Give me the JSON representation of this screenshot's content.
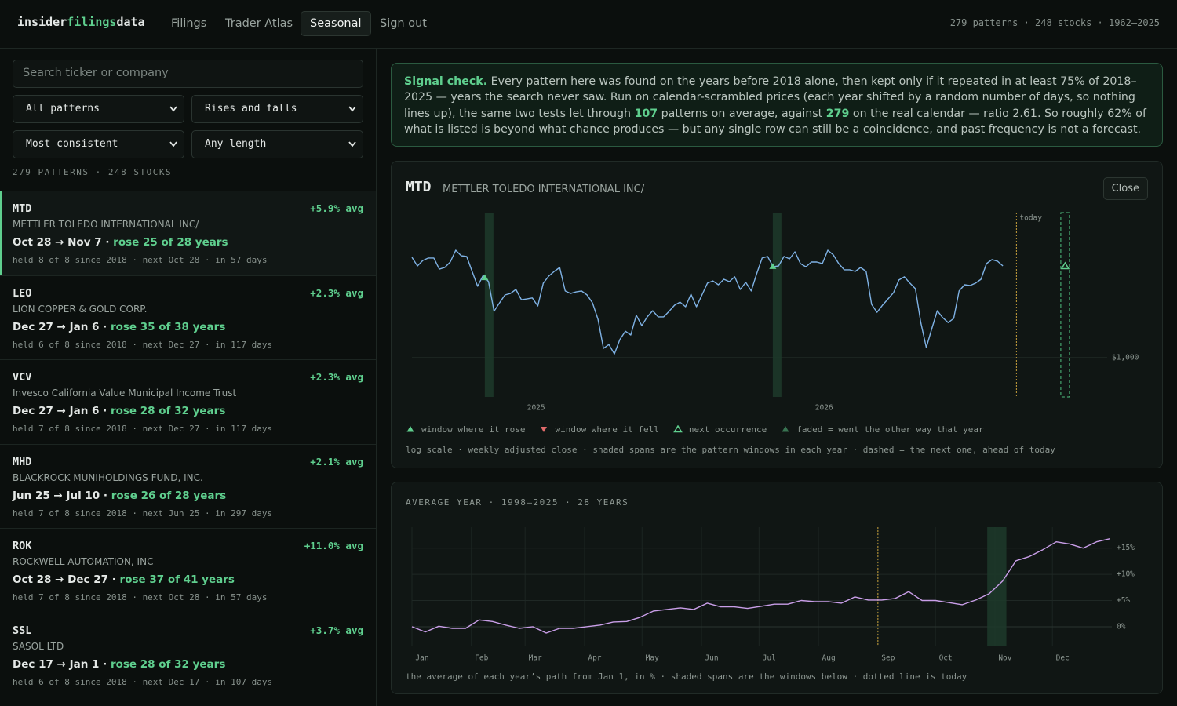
{
  "header": {
    "brand": [
      "insider",
      "filings",
      "data"
    ],
    "nav": [
      "Filings",
      "Trader Atlas",
      "Seasonal",
      "Sign out"
    ],
    "active_nav": 2,
    "stats": "279 patterns · 248 stocks · 1962–2025"
  },
  "sidebar": {
    "search_placeholder": "Search ticker or company",
    "filters": [
      "All patterns",
      "Rises and falls",
      "Most consistent",
      "Any length"
    ],
    "count": "279 PATTERNS · 248 STOCKS",
    "separator": "·",
    "active_item": 0,
    "items": [
      {
        "ticker": "MTD",
        "name": "METTLER TOLEDO INTERNATIONAL INC/",
        "avg": "+5.9% avg",
        "window": "Oct 28 → Nov 7",
        "stat": "rose 25 of 28 years",
        "detail": "held 8 of 8 since 2018 · next Oct 28 · in 57 days"
      },
      {
        "ticker": "LEO",
        "name": "LION COPPER & GOLD CORP.",
        "avg": "+2.3% avg",
        "window": "Dec 27 → Jan 6",
        "stat": "rose 35 of 38 years",
        "detail": "held 6 of 8 since 2018 · next Dec 27 · in 117 days"
      },
      {
        "ticker": "VCV",
        "name": "Invesco California Value Municipal Income Trust",
        "avg": "+2.3% avg",
        "window": "Dec 27 → Jan 6",
        "stat": "rose 28 of 32 years",
        "detail": "held 7 of 8 since 2018 · next Dec 27 · in 117 days"
      },
      {
        "ticker": "MHD",
        "name": "BLACKROCK MUNIHOLDINGS FUND, INC.",
        "avg": "+2.1% avg",
        "window": "Jun 25 → Jul 10",
        "stat": "rose 26 of 28 years",
        "detail": "held 7 of 8 since 2018 · next Jun 25 · in 297 days"
      },
      {
        "ticker": "ROK",
        "name": "ROCKWELL AUTOMATION, INC",
        "avg": "+11.0% avg",
        "window": "Oct 28 → Dec 27",
        "stat": "rose 37 of 41 years",
        "detail": "held 7 of 8 since 2018 · next Oct 28 · in 57 days"
      },
      {
        "ticker": "SSL",
        "name": "SASOL LTD",
        "avg": "+3.7% avg",
        "window": "Dec 17 → Jan 1",
        "stat": "rose 28 of 32 years",
        "detail": "held 6 of 8 since 2018 · next Dec 17 · in 107 days"
      }
    ]
  },
  "signal": {
    "lead": "Signal check.",
    "parts": [
      "Every pattern here was found on the years before 2018 alone, then kept only if it repeated in at least 75% of 2018–2025 — years the search never saw. Run on calendar-scrambled prices (each year shifted by a random number of days, so nothing lines up), the same two tests let through ",
      "107",
      " patterns on average, against ",
      "279",
      " on the real calendar — ratio 2.61. So roughly 62% of what is listed is beyond what chance produces — but any single row can still be a coincidence, and past frequency is not a forecast."
    ]
  },
  "chart_data": [
    {
      "type": "line",
      "ticker": "MTD",
      "name": "METTLER TOLEDO INTERNATIONAL INC/",
      "close": "Close",
      "x": [
        2024.569,
        2024.588,
        2024.607,
        2024.626,
        2024.645,
        2024.664,
        2024.683,
        2024.702,
        2024.721,
        2024.74,
        2024.759,
        2024.778,
        2024.797,
        2024.816,
        2024.835,
        2024.854,
        2024.873,
        2024.892,
        2024.911,
        2024.93,
        2024.949,
        2024.968,
        2024.987,
        2025.006,
        2025.025,
        2025.044,
        2025.063,
        2025.082,
        2025.101,
        2025.12,
        2025.139,
        2025.158,
        2025.177,
        2025.196,
        2025.215,
        2025.234,
        2025.253,
        2025.272,
        2025.291,
        2025.31,
        2025.329,
        2025.348,
        2025.367,
        2025.386,
        2025.405,
        2025.424,
        2025.443,
        2025.462,
        2025.481,
        2025.5,
        2025.519,
        2025.538,
        2025.557,
        2025.576,
        2025.595,
        2025.614,
        2025.633,
        2025.652,
        2025.671,
        2025.69,
        2025.709,
        2025.728,
        2025.747,
        2025.766,
        2025.785,
        2025.804,
        2025.823,
        2025.842,
        2025.861,
        2025.88,
        2025.899,
        2025.918,
        2025.937,
        2025.956,
        2025.975,
        2025.994,
        2026.013,
        2026.032,
        2026.051,
        2026.07,
        2026.089,
        2026.108,
        2026.127,
        2026.146,
        2026.165,
        2026.184,
        2026.203,
        2026.222,
        2026.241,
        2026.26,
        2026.279,
        2026.298,
        2026.317,
        2026.336,
        2026.355,
        2026.374,
        2026.393,
        2026.412,
        2026.431,
        2026.45,
        2026.469,
        2026.488,
        2026.507,
        2026.526,
        2026.545,
        2026.564,
        2026.583,
        2026.602,
        2026.621
      ],
      "values": [
        1384,
        1346,
        1370,
        1381,
        1381,
        1332,
        1339,
        1363,
        1416,
        1391,
        1388,
        1322,
        1260,
        1305,
        1279,
        1162,
        1194,
        1225,
        1231,
        1247,
        1206,
        1209,
        1213,
        1182,
        1273,
        1302,
        1322,
        1339,
        1241,
        1231,
        1237,
        1241,
        1225,
        1194,
        1132,
        1030,
        1043,
        1012,
        1060,
        1089,
        1076,
        1147,
        1109,
        1141,
        1164,
        1141,
        1141,
        1162,
        1185,
        1197,
        1179,
        1228,
        1179,
        1225,
        1273,
        1282,
        1266,
        1289,
        1279,
        1299,
        1247,
        1276,
        1241,
        1312,
        1381,
        1388,
        1342,
        1346,
        1388,
        1377,
        1409,
        1356,
        1342,
        1363,
        1363,
        1356,
        1416,
        1395,
        1356,
        1329,
        1329,
        1322,
        1339,
        1322,
        1188,
        1158,
        1185,
        1209,
        1234,
        1286,
        1299,
        1273,
        1250,
        1120,
        1033,
        1098,
        1164,
        1138,
        1120,
        1135,
        1241,
        1266,
        1263,
        1273,
        1289,
        1356,
        1374,
        1367,
        1346
      ],
      "color": "#7fb2e5",
      "xlim": [
        2024.569,
        2026.983
      ],
      "xticks": [
        2025,
        2026
      ],
      "ylim": [
        880,
        1600
      ],
      "yticks": [
        {
          "value": 1000,
          "label": "$1,000"
        }
      ],
      "log": true,
      "grid": true,
      "windows": [
        {
          "start": 2024.822,
          "end": 2024.852,
          "outcome": "rose"
        },
        {
          "start": 2025.822,
          "end": 2025.852,
          "outcome": "rose"
        }
      ],
      "next_window": {
        "start": 2026.822,
        "end": 2026.852
      },
      "today": 2026.668,
      "today_label": "today",
      "legend": [
        {
          "name": "window where it rose",
          "symbol": "rose"
        },
        {
          "name": "window where it fell",
          "symbol": "fell"
        },
        {
          "name": "next occurrence",
          "symbol": "next"
        },
        {
          "name": "faded = went the other way that year",
          "symbol": "faded"
        }
      ],
      "note": "log scale · weekly adjusted close · shaded spans are the pattern windows in each year · dashed = the next one, ahead of today"
    },
    {
      "type": "line",
      "title": "AVERAGE YEAR · 1998–2025 · 28 YEARS",
      "x": [
        1,
        8,
        15,
        22,
        29,
        36,
        43,
        50,
        57,
        64,
        71,
        78,
        85,
        92,
        99,
        106,
        113,
        120,
        127,
        134,
        141,
        148,
        155,
        162,
        169,
        176,
        183,
        190,
        197,
        204,
        211,
        218,
        225,
        232,
        239,
        246,
        253,
        260,
        267,
        274,
        281,
        288,
        295,
        302,
        309,
        316,
        323,
        330,
        337,
        344,
        351,
        358,
        365
      ],
      "values": [
        0,
        -1.0,
        0.1,
        -0.3,
        -0.3,
        1.3,
        1.0,
        0.3,
        -0.3,
        0,
        -1.2,
        -0.3,
        -0.3,
        0,
        0.3,
        0.9,
        1.0,
        1.8,
        3.0,
        3.3,
        3.6,
        3.3,
        4.5,
        3.8,
        3.8,
        3.5,
        3.9,
        4.3,
        4.3,
        5.0,
        4.8,
        4.8,
        4.5,
        5.7,
        5.1,
        5.1,
        5.4,
        6.7,
        5.0,
        5.0,
        4.6,
        4.2,
        5.1,
        6.3,
        8.7,
        12.6,
        13.4,
        14.7,
        16.2,
        15.8,
        15.0,
        16.2,
        16.8
      ],
      "color": "#c99ee8",
      "xlim": [
        1,
        366
      ],
      "xticks": [
        {
          "value": 1,
          "label": "Jan"
        },
        {
          "value": 32,
          "label": "Feb"
        },
        {
          "value": 60,
          "label": "Mar"
        },
        {
          "value": 91,
          "label": "Apr"
        },
        {
          "value": 121,
          "label": "May"
        },
        {
          "value": 152,
          "label": "Jun"
        },
        {
          "value": 182,
          "label": "Jul"
        },
        {
          "value": 213,
          "label": "Aug"
        },
        {
          "value": 244,
          "label": "Sep"
        },
        {
          "value": 274,
          "label": "Oct"
        },
        {
          "value": 305,
          "label": "Nov"
        },
        {
          "value": 335,
          "label": "Dec"
        }
      ],
      "ylim": [
        -3.6,
        19
      ],
      "yticks": [
        {
          "value": 15,
          "label": "+15%"
        },
        {
          "value": 10,
          "label": "+10%"
        },
        {
          "value": 5,
          "label": "+5%"
        },
        {
          "value": 0,
          "label": "0%"
        }
      ],
      "grid": true,
      "xgrid": true,
      "windows": [
        {
          "start": 301,
          "end": 311
        }
      ],
      "today": 244,
      "note": "the average of each year’s path from Jan 1, in % · shaded spans are the windows below · dotted line is today"
    }
  ]
}
